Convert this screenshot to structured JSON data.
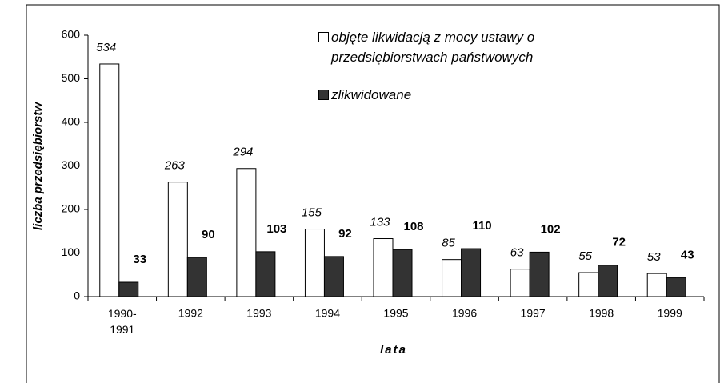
{
  "chart_data": {
    "type": "bar",
    "categories": [
      "1990-1991",
      "1992",
      "1993",
      "1994",
      "1995",
      "1996",
      "1997",
      "1998",
      "1999"
    ],
    "series": [
      {
        "name": "objęte likwidacją z mocy ustawy o przedsiębiorstwach państwowych",
        "color": "#ffffff",
        "values": [
          534,
          263,
          294,
          155,
          133,
          85,
          63,
          55,
          53
        ]
      },
      {
        "name": "zlikwidowane",
        "color": "#333333",
        "values": [
          33,
          90,
          103,
          92,
          108,
          110,
          102,
          72,
          43
        ]
      }
    ],
    "ylim": [
      0,
      600
    ],
    "yticks": [
      0,
      100,
      200,
      300,
      400,
      500,
      600
    ],
    "xlabel": "lata",
    "ylabel": "liczba przedsiębiorstw",
    "grid": false,
    "legend": "top-right"
  }
}
